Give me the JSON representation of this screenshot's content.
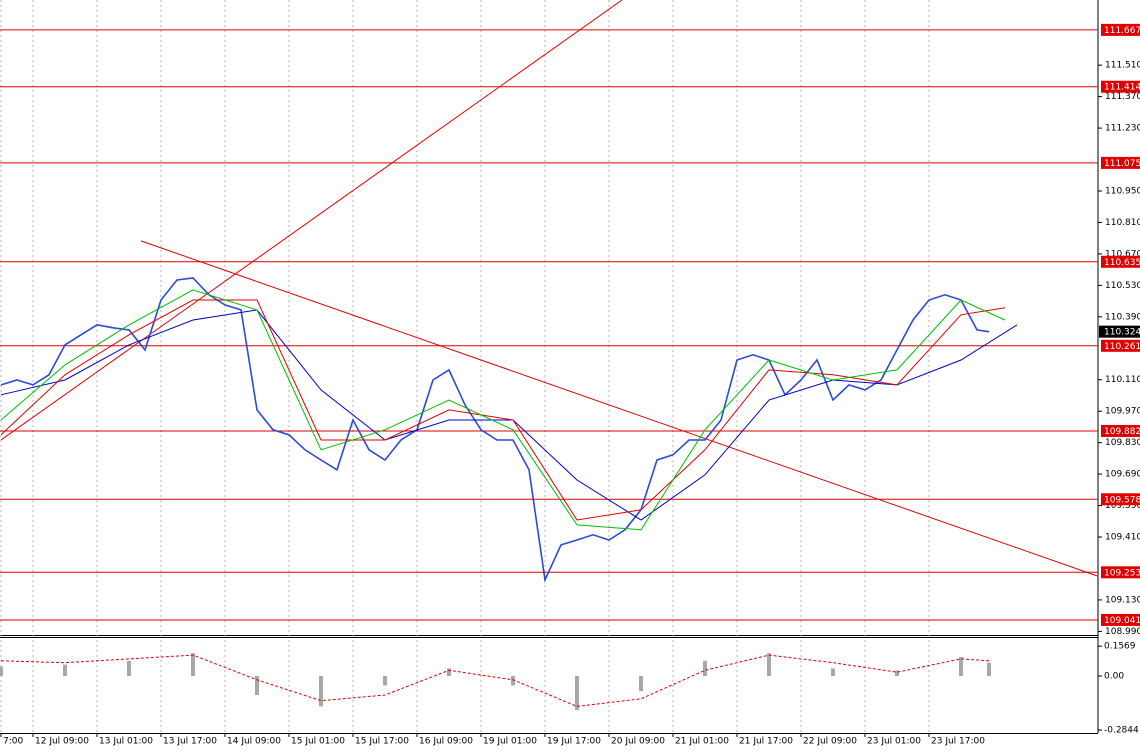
{
  "chart_data": {
    "type": "line",
    "ylim": [
      108.974,
      111.8
    ],
    "xlim": [
      0,
      274
    ],
    "yticks": [
      {
        "value": 111.51,
        "label": "111.510"
      },
      {
        "value": 111.37,
        "label": "111.370"
      },
      {
        "value": 111.23,
        "label": "111.230"
      },
      {
        "value": 110.95,
        "label": "110.950"
      },
      {
        "value": 110.81,
        "label": "110.810"
      },
      {
        "value": 110.67,
        "label": "110.670"
      },
      {
        "value": 110.53,
        "label": "110.530"
      },
      {
        "value": 110.39,
        "label": "110.390"
      },
      {
        "value": 110.11,
        "label": "110.110"
      },
      {
        "value": 109.97,
        "label": "109.970"
      },
      {
        "value": 109.83,
        "label": "109.830"
      },
      {
        "value": 109.69,
        "label": "109.690"
      },
      {
        "value": 109.55,
        "label": "109.550"
      },
      {
        "value": 109.41,
        "label": "109.410"
      },
      {
        "value": 109.13,
        "label": "109.130"
      },
      {
        "value": 108.99,
        "label": "108.990"
      }
    ],
    "xticks": [
      {
        "value": 0,
        "label": "7:00"
      },
      {
        "value": 8,
        "label": "12 Jul 09:00"
      },
      {
        "value": 24,
        "label": "13 Jul 01:00"
      },
      {
        "value": 40,
        "label": "13 Jul 17:00"
      },
      {
        "value": 56,
        "label": "14 Jul 09:00"
      },
      {
        "value": 72,
        "label": "15 Jul 01:00"
      },
      {
        "value": 88,
        "label": "15 Jul 17:00"
      },
      {
        "value": 104,
        "label": "16 Jul 09:00"
      },
      {
        "value": 120,
        "label": "19 Jul 01:00"
      },
      {
        "value": 136,
        "label": "19 Jul 17:00"
      },
      {
        "value": 152,
        "label": "20 Jul 09:00"
      },
      {
        "value": 168,
        "label": "21 Jul 01:00"
      },
      {
        "value": 184,
        "label": "21 Jul 17:00"
      },
      {
        "value": 200,
        "label": "22 Jul 09:00"
      },
      {
        "value": 216,
        "label": "23 Jul 01:00"
      },
      {
        "value": 232,
        "label": "23 Jul 17:00"
      }
    ],
    "grid": true,
    "series": [
      {
        "color": "#2a4bd7",
        "width": 1.6,
        "x": [
          0,
          4,
          8,
          12,
          16,
          20,
          24,
          28,
          32,
          36,
          40,
          44,
          48,
          52,
          56,
          60,
          64,
          68,
          72,
          76,
          80,
          84,
          88,
          92,
          96,
          100,
          104,
          108,
          112,
          116,
          120,
          124,
          128,
          132,
          136,
          140,
          144,
          148,
          152,
          156,
          160,
          164,
          168,
          172,
          176,
          180,
          184,
          188,
          192,
          196,
          200,
          204,
          208,
          212,
          216,
          220,
          224,
          228,
          232,
          236,
          240,
          244,
          247
        ],
        "values": [
          110.087,
          110.109,
          110.087,
          110.132,
          110.265,
          110.31,
          110.354,
          110.341,
          110.332,
          110.243,
          110.465,
          110.554,
          110.563,
          110.488,
          110.443,
          110.421,
          109.976,
          109.887,
          109.865,
          109.798,
          109.753,
          109.709,
          109.931,
          109.798,
          109.753,
          109.842,
          109.887,
          110.109,
          110.154,
          109.998,
          109.887,
          109.842,
          109.842,
          109.709,
          109.219,
          109.375,
          109.397,
          109.42,
          109.397,
          109.442,
          109.531,
          109.753,
          109.776,
          109.842,
          109.842,
          109.931,
          110.198,
          110.221,
          110.198,
          110.043,
          110.109,
          110.198,
          110.02,
          110.087,
          110.065,
          110.109,
          110.243,
          110.376,
          110.465,
          110.488,
          110.465,
          110.332,
          110.324
        ]
      },
      {
        "color": "#0000c8",
        "width": 1,
        "x": [
          0,
          16,
          32,
          48,
          64,
          80,
          96,
          112,
          128,
          144,
          160,
          176,
          192,
          208,
          224,
          240,
          254
        ],
        "values": [
          110.043,
          110.109,
          110.265,
          110.376,
          110.421,
          110.065,
          109.842,
          109.931,
          109.931,
          109.664,
          109.486,
          109.687,
          110.02,
          110.109,
          110.087,
          110.198,
          110.354
        ]
      },
      {
        "color": "#e00000",
        "width": 1,
        "x": [
          0,
          16,
          32,
          48,
          64,
          80,
          96,
          112,
          128,
          144,
          160,
          176,
          192,
          208,
          224,
          240,
          251
        ],
        "values": [
          109.865,
          110.132,
          110.31,
          110.465,
          110.465,
          109.842,
          109.842,
          109.976,
          109.931,
          109.486,
          109.531,
          109.798,
          110.154,
          110.132,
          110.087,
          110.399,
          110.43
        ]
      },
      {
        "color": "#00c000",
        "width": 1,
        "x": [
          0,
          16,
          32,
          48,
          64,
          80,
          96,
          112,
          128,
          144,
          160,
          176,
          192,
          208,
          224,
          240,
          251
        ],
        "values": [
          109.931,
          110.176,
          110.354,
          110.51,
          110.421,
          109.798,
          109.887,
          110.02,
          109.887,
          109.464,
          109.442,
          109.887,
          110.198,
          110.109,
          110.154,
          110.465,
          110.376
        ]
      }
    ],
    "trendlines": [
      {
        "x": [
          0,
          155.25
        ],
        "values": [
          109.842,
          111.8
        ]
      },
      {
        "x": [
          35,
          274
        ],
        "values": [
          110.728,
          109.237
        ]
      }
    ],
    "level_color": "#e00000",
    "levels": [
      111.667,
      111.414,
      111.075,
      110.635,
      110.261,
      109.882,
      109.578,
      109.253,
      109.041
    ],
    "last": 110.324,
    "indicator": {
      "ylim": [
        -0.3,
        0.2
      ],
      "yticks": [
        0.1569,
        {
          "value": 0,
          "label": "0.00"
        },
        -0.2844
      ],
      "histogram_color": "#a8a8a8",
      "signal_color": "#e00000",
      "x": [
        0,
        16,
        32,
        48,
        64,
        80,
        96,
        112,
        128,
        144,
        160,
        176,
        192,
        208,
        224,
        240,
        247
      ],
      "histogram": [
        0.05,
        0.06,
        0.08,
        0.12,
        -0.1,
        -0.16,
        -0.05,
        0.04,
        -0.05,
        -0.18,
        -0.08,
        0.08,
        0.12,
        0.04,
        0.03,
        0.1,
        0.07
      ],
      "signal": [
        0.08,
        0.07,
        0.09,
        0.11,
        -0.02,
        -0.13,
        -0.1,
        0.03,
        -0.02,
        -0.16,
        -0.12,
        0.03,
        0.11,
        0.07,
        0.02,
        0.09,
        0.08
      ]
    }
  }
}
